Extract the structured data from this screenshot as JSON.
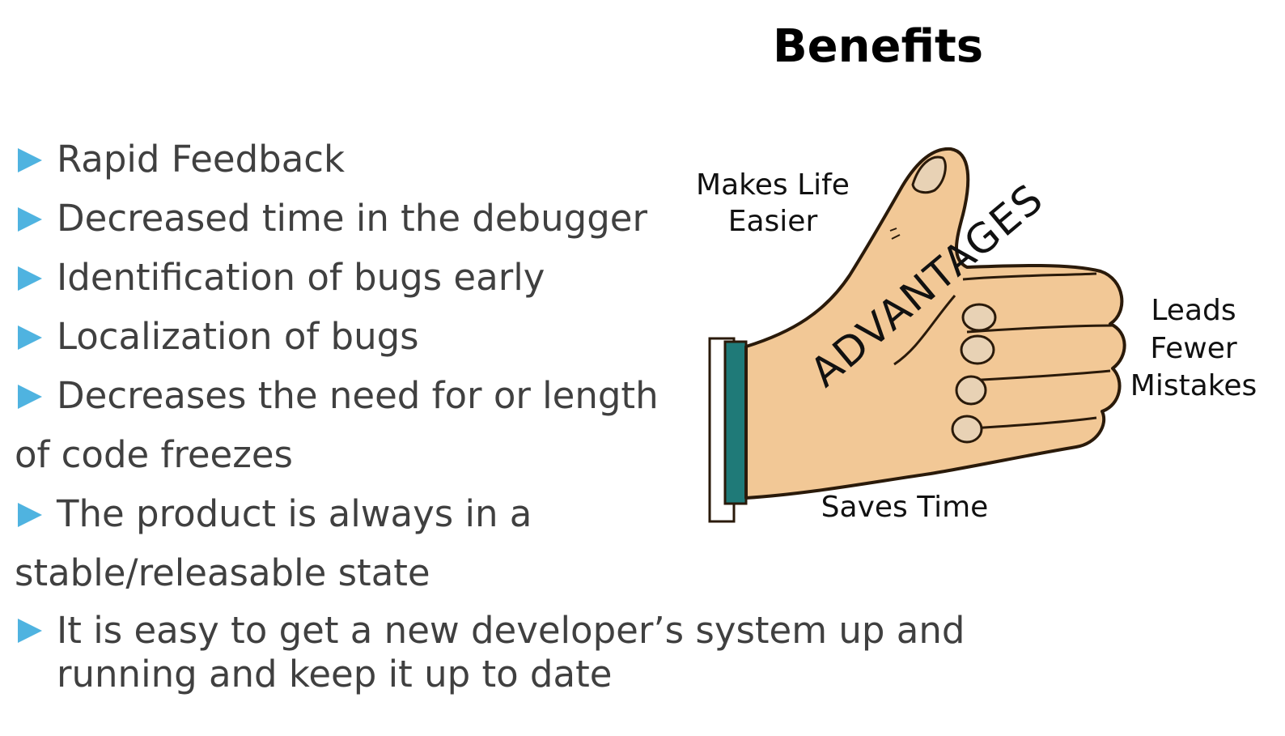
{
  "slide": {
    "title": "Benefits",
    "bullets": [
      "Rapid Feedback",
      "Decreased time in the debugger",
      "Identification of bugs early",
      "Localization of bugs",
      "Decreases the need for or length",
      "of code freezes",
      "The product is always in a",
      "stable/releasable state",
      "It is easy to get a new developer’s system up and running and keep it up to date"
    ],
    "illustration": {
      "center_word": "ADVANTAGES",
      "labels": {
        "top_line1": "Makes Life",
        "top_line2": "Easier",
        "right_line1": "Leads",
        "right_line2": "Fewer",
        "right_line3": "Mistakes",
        "bottom": "Saves Time"
      },
      "colors": {
        "skin": "#f2c896",
        "outline": "#2a1a0a",
        "cuff": "#1f7a78",
        "marker": "#4fb3e0"
      }
    }
  }
}
